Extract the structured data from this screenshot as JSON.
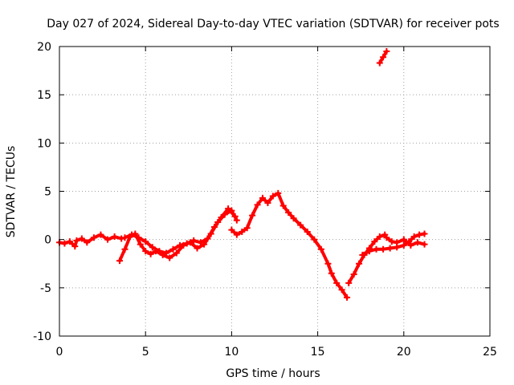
{
  "chart_data": {
    "type": "line",
    "title": "Day 027 of 2024, Sidereal Day-to-day VTEC variation (SDTVAR) for receiver pots",
    "xlabel": "GPS time / hours",
    "ylabel": "SDTVAR / TECUs",
    "xlim": [
      0,
      25
    ],
    "ylim": [
      -10,
      20
    ],
    "xticks": [
      0,
      5,
      10,
      15,
      20,
      25
    ],
    "yticks": [
      -10,
      -5,
      0,
      5,
      10,
      15,
      20
    ],
    "grid": true,
    "color": "#ff0000",
    "marker": "plus",
    "series": [
      {
        "name": "segment-a",
        "x": [
          0,
          0.3,
          0.6,
          0.9,
          1.0,
          1.3,
          1.6,
          2.0,
          2.4,
          2.8,
          3.2,
          3.6
        ],
        "y": [
          -0.3,
          -0.4,
          -0.2,
          -0.7,
          -0.1,
          0.1,
          -0.3,
          0.2,
          0.5,
          0.0,
          0.3,
          0.1
        ]
      },
      {
        "name": "segment-b",
        "x": [
          3.5,
          3.8,
          4.1,
          4.4,
          4.7,
          5.0,
          5.3,
          5.6,
          6.0,
          6.4,
          6.8,
          7.2,
          7.6,
          8.0,
          8.4,
          8.8,
          9.2,
          9.6,
          10.0,
          10.3
        ],
        "y": [
          -2.2,
          -1.0,
          0.3,
          0.6,
          -0.5,
          -1.2,
          -1.5,
          -1.2,
          -1.6,
          -1.9,
          -1.4,
          -0.6,
          -0.3,
          -0.9,
          -0.5,
          0.6,
          1.8,
          2.6,
          3.0,
          2.0
        ]
      },
      {
        "name": "segment-c",
        "x": [
          3.8,
          4.2,
          4.6,
          5.0,
          5.4,
          5.8,
          6.2,
          6.6,
          7.0,
          7.4,
          7.8,
          8.2,
          8.6,
          9.0,
          9.4,
          9.8,
          10.2
        ],
        "y": [
          0.2,
          0.5,
          0.2,
          -0.2,
          -0.8,
          -1.2,
          -1.4,
          -1.0,
          -0.6,
          -0.4,
          -0.1,
          -0.3,
          0.1,
          1.3,
          2.3,
          3.2,
          2.4
        ]
      },
      {
        "name": "segment-d",
        "x": [
          10.0,
          10.3,
          10.6,
          10.9,
          11.2,
          11.5,
          11.8,
          12.1,
          12.4,
          12.7,
          13.0,
          13.3,
          13.6,
          14.0,
          14.4,
          14.8,
          15.2,
          15.6,
          15.8,
          16.1,
          16.4,
          16.7
        ],
        "y": [
          1.0,
          0.5,
          0.8,
          1.2,
          2.5,
          3.6,
          4.3,
          3.8,
          4.5,
          4.8,
          3.5,
          2.8,
          2.2,
          1.5,
          0.8,
          0.0,
          -1.0,
          -2.5,
          -3.5,
          -4.5,
          -5.2,
          -6.0
        ]
      },
      {
        "name": "segment-e",
        "x": [
          16.8,
          17.1,
          17.4,
          17.7,
          18.0,
          18.3,
          18.6,
          18.9
        ],
        "y": [
          -4.5,
          -3.6,
          -2.5,
          -1.6,
          -0.9,
          -0.2,
          0.3,
          0.5
        ]
      },
      {
        "name": "segment-f",
        "x": [
          17.6,
          18.0,
          18.4,
          18.8,
          19.2,
          19.6,
          20.0,
          20.3,
          20.6,
          20.9,
          21.2
        ],
        "y": [
          -1.6,
          -1.2,
          -1.0,
          -1.0,
          -0.9,
          -0.8,
          -0.6,
          -0.2,
          0.3,
          0.5,
          0.6
        ]
      },
      {
        "name": "segment-g",
        "x": [
          19.0,
          19.3,
          19.6,
          20.0,
          20.4,
          20.8,
          21.2
        ],
        "y": [
          0.2,
          -0.2,
          -0.3,
          0.0,
          -0.6,
          -0.3,
          -0.5
        ]
      },
      {
        "name": "segment-h",
        "x": [
          18.6,
          18.8,
          19.0
        ],
        "y": [
          18.3,
          18.9,
          19.5
        ]
      }
    ]
  }
}
